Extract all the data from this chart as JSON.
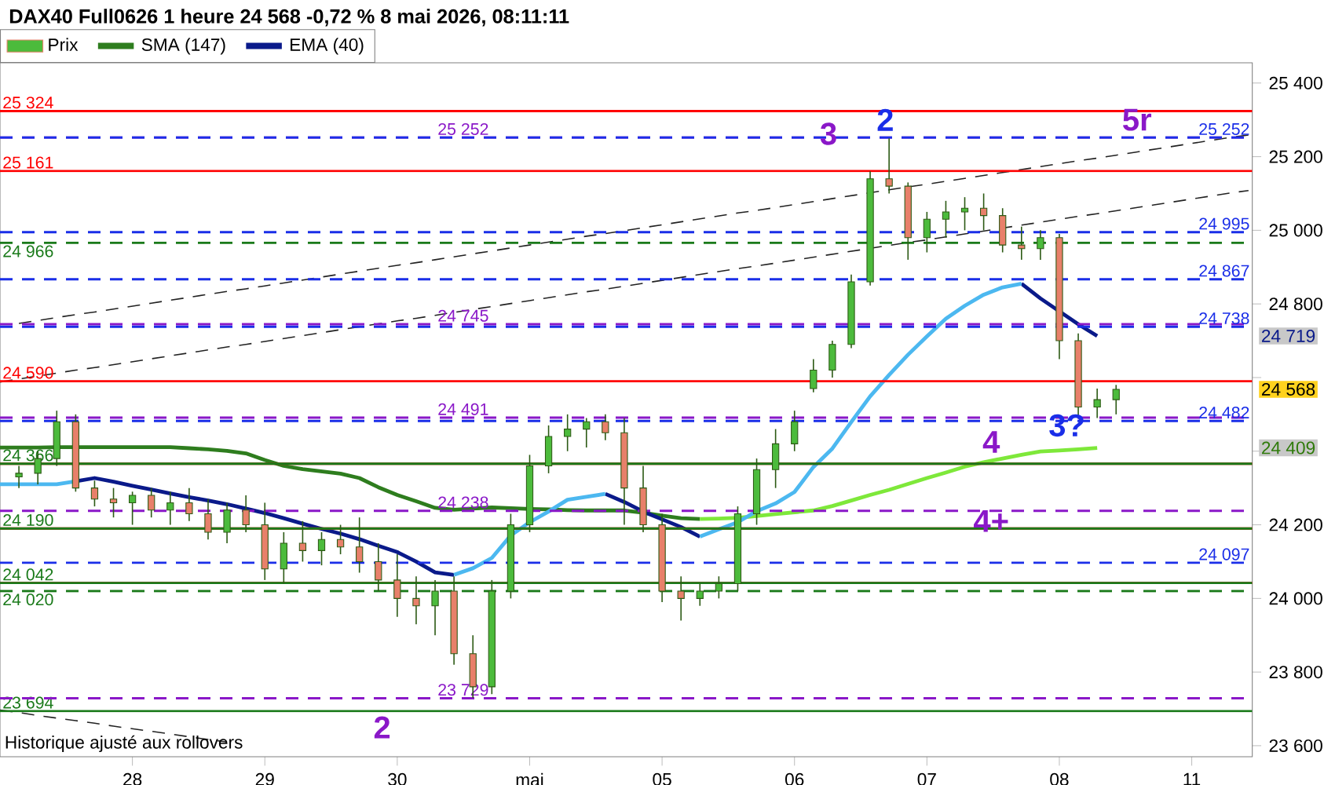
{
  "chart_data": {
    "type": "candlestick",
    "title": "DAX40 Full0626 1 heure 24 568 -0,72 % 8 mai 2026, 08:11:11",
    "categories": [
      null,
      null,
      null,
      null,
      null,
      null,
      null,
      "28",
      null,
      null,
      null,
      null,
      null,
      null,
      "29",
      null,
      null,
      null,
      null,
      null,
      null,
      "30",
      null,
      null,
      null,
      null,
      null,
      null,
      "mai",
      null,
      null,
      null,
      null,
      null,
      null,
      "05",
      null,
      null,
      null,
      null,
      null,
      null,
      "06",
      null,
      null,
      null,
      null,
      null,
      null,
      "07",
      null,
      null,
      null,
      null,
      null,
      null,
      "08",
      null,
      null,
      null,
      null,
      null,
      null,
      "11",
      null,
      null,
      null
    ],
    "ylim": [
      23570,
      25455
    ],
    "yticks": [
      {
        "value": 23600,
        "label": "23 600"
      },
      {
        "value": 23800,
        "label": "23 800"
      },
      {
        "value": 24000,
        "label": "24 000"
      },
      {
        "value": 24200,
        "label": "24 200"
      },
      {
        "value": 24400,
        "label": null
      },
      {
        "value": 24600,
        "label": null
      },
      {
        "value": 24800,
        "label": "24 800"
      },
      {
        "value": 25000,
        "label": "25 000"
      },
      {
        "value": 25200,
        "label": "25 200"
      },
      {
        "value": 25400,
        "label": "25 400"
      }
    ],
    "legend": "top left",
    "series": [
      {
        "name": "Prix",
        "ohlc": [
          null,
          [
            24330,
            24360,
            24300,
            24340
          ],
          [
            24340,
            24400,
            24310,
            24380
          ],
          [
            24380,
            24510,
            24360,
            24480
          ],
          [
            24480,
            24500,
            24290,
            24300
          ],
          [
            24300,
            24320,
            24250,
            24270
          ],
          [
            24270,
            24300,
            24220,
            24260
          ],
          [
            24260,
            24290,
            24200,
            24280
          ],
          [
            24280,
            24300,
            24220,
            24240
          ],
          [
            24240,
            24290,
            24200,
            24260
          ],
          [
            24260,
            24300,
            24210,
            24230
          ],
          [
            24230,
            24270,
            24160,
            24180
          ],
          [
            24180,
            24260,
            24150,
            24240
          ],
          [
            24240,
            24280,
            24180,
            24200
          ],
          [
            24200,
            24260,
            24050,
            24080
          ],
          [
            24080,
            24180,
            24040,
            24150
          ],
          [
            24150,
            24210,
            24100,
            24130
          ],
          [
            24130,
            24180,
            24090,
            24160
          ],
          [
            24160,
            24200,
            24120,
            24140
          ],
          [
            24140,
            24220,
            24070,
            24100
          ],
          [
            24100,
            24150,
            24020,
            24050
          ],
          [
            24050,
            24120,
            23950,
            24000
          ],
          [
            24000,
            24060,
            23930,
            23980
          ],
          [
            23980,
            24050,
            23900,
            24020
          ],
          [
            24020,
            24060,
            23820,
            23850
          ],
          [
            23850,
            23900,
            23730,
            23760
          ],
          [
            23760,
            24050,
            23740,
            24020
          ],
          [
            24020,
            24230,
            24000,
            24200
          ],
          [
            24200,
            24390,
            24180,
            24360
          ],
          [
            24360,
            24470,
            24340,
            24440
          ],
          [
            24440,
            24500,
            24400,
            24460
          ],
          [
            24460,
            24490,
            24410,
            24480
          ],
          [
            24480,
            24500,
            24430,
            24450
          ],
          [
            24450,
            24490,
            24200,
            24300
          ],
          [
            24300,
            24360,
            24180,
            24200
          ],
          [
            24200,
            24230,
            23990,
            24020
          ],
          [
            24020,
            24060,
            23940,
            24000
          ],
          [
            24000,
            24040,
            23980,
            24020
          ],
          [
            24020,
            24060,
            24000,
            24040
          ],
          [
            24040,
            24250,
            24020,
            24230
          ],
          [
            24230,
            24380,
            24200,
            24350
          ],
          [
            24350,
            24460,
            24300,
            24420
          ],
          [
            24420,
            24510,
            24400,
            24480
          ],
          [
            24570,
            24650,
            24560,
            24620
          ],
          [
            24620,
            24700,
            24600,
            24690
          ],
          [
            24690,
            24880,
            24680,
            24860
          ],
          [
            24860,
            25160,
            24850,
            25140
          ],
          [
            25140,
            25250,
            25100,
            25120
          ],
          [
            25120,
            25130,
            24920,
            24980
          ],
          [
            24980,
            25050,
            24940,
            25030
          ],
          [
            25030,
            25080,
            24980,
            25050
          ],
          [
            25050,
            25090,
            25000,
            25060
          ],
          [
            25060,
            25100,
            25000,
            25040
          ],
          [
            25040,
            25060,
            24940,
            24960
          ],
          [
            24960,
            25010,
            24920,
            24950
          ],
          [
            24950,
            25000,
            24920,
            24980
          ],
          [
            24980,
            24990,
            24650,
            24700
          ],
          [
            24700,
            24720,
            24490,
            24520
          ],
          [
            24520,
            24570,
            24490,
            24540
          ],
          [
            24540,
            24580,
            24500,
            24568
          ],
          null,
          null,
          null,
          null,
          null,
          null,
          null
        ]
      },
      {
        "type": "line",
        "name": "SMA (147)",
        "color": "#2e7d1e",
        "values": [
          24410,
          24410,
          24410,
          24411,
          24411,
          24411,
          24411,
          24411,
          24411,
          24411,
          24408,
          24405,
          24401,
          24394,
          24376,
          24360,
          24351,
          24345,
          24339,
          24327,
          24302,
          24281,
          24264,
          24246,
          24241,
          24244,
          24247,
          24245,
          24243,
          24242,
          24240,
          24239,
          24239,
          24239,
          24233,
          24225,
          24218,
          24216,
          null,
          null,
          null,
          null,
          null,
          null,
          null,
          null,
          null,
          null,
          null,
          null,
          null,
          null,
          null,
          null,
          null,
          null,
          null,
          null,
          null,
          null,
          null,
          null,
          null,
          null,
          null,
          null,
          null
        ]
      },
      {
        "type": "line",
        "color": "#7ee83a",
        "values": [
          null,
          null,
          null,
          null,
          null,
          null,
          null,
          null,
          null,
          null,
          null,
          null,
          null,
          null,
          null,
          null,
          null,
          null,
          null,
          null,
          null,
          null,
          null,
          null,
          null,
          null,
          null,
          null,
          null,
          null,
          null,
          null,
          null,
          null,
          null,
          null,
          null,
          24216,
          24217,
          24219,
          24224,
          24229,
          24234,
          24239,
          24251,
          24266,
          24281,
          24295,
          24311,
          24327,
          24342,
          24358,
          24370,
          24380,
          24390,
          24399,
          24402,
          24405,
          24409,
          null,
          null,
          null,
          null,
          null,
          null,
          null,
          null
        ]
      },
      {
        "type": "line",
        "name": "EMA (40)",
        "color": "#0a1a8a",
        "values": [
          null,
          null,
          null,
          null,
          24318,
          24327,
          24317,
          24306,
          24296,
          24285,
          24275,
          24266,
          24256,
          24244,
          24232,
          24218,
          24203,
          24189,
          24176,
          24161,
          24143,
          24126,
          24100,
          24071,
          24064,
          null,
          null,
          null,
          null,
          null,
          null,
          null,
          24284,
          24262,
          24236,
          24215,
          24194,
          24168,
          null,
          null,
          null,
          null,
          null,
          null,
          null,
          null,
          null,
          null,
          null,
          null,
          null,
          null,
          null,
          null,
          24855,
          24815,
          24780,
          24745,
          24713,
          null,
          null,
          null,
          null,
          null,
          null,
          null,
          null
        ]
      },
      {
        "type": "line",
        "color": "#4cb8f0",
        "values": [
          24310,
          24310,
          24310,
          24310,
          24318,
          null,
          null,
          null,
          null,
          null,
          null,
          null,
          null,
          null,
          null,
          null,
          null,
          null,
          null,
          null,
          null,
          null,
          null,
          null,
          24064,
          24082,
          24110,
          24171,
          24207,
          24236,
          24268,
          24276,
          24284,
          null,
          null,
          null,
          null,
          24168,
          24188,
          24207,
          24237,
          24258,
          24289,
          24357,
          24407,
          24479,
          24549,
          24607,
          24662,
          24712,
          24760,
          24795,
          24825,
          24845,
          24855,
          null,
          null,
          null,
          null,
          null,
          null,
          null,
          null,
          null,
          null,
          null,
          null
        ]
      },
      {
        "type": "line",
        "color": "#222222",
        "line_style": "dashed",
        "values": [
          null,
          24747,
          24755,
          24763,
          24771,
          24778,
          24786,
          24794,
          24802,
          24810,
          24818,
          24826,
          24834,
          24841,
          24849,
          24857,
          24865,
          24873,
          24881,
          24889,
          24897,
          24905,
          24912,
          24920,
          24928,
          24936,
          24944,
          24952,
          24960,
          24968,
          24976,
          24984,
          24991,
          24999,
          25007,
          25015,
          25023,
          25031,
          25039,
          25047,
          25054,
          25062,
          25070,
          25078,
          25086,
          25094,
          25102,
          25110,
          25118,
          25125,
          25133,
          25141,
          25149,
          25157,
          25165,
          25173,
          25181,
          25189,
          25196,
          25204,
          25212,
          25220,
          25228,
          25236,
          25244,
          25252,
          25259
        ]
      },
      {
        "type": "line",
        "color": "#222222",
        "line_style": "dashed",
        "values": [
          24588,
          24596,
          24604,
          24612,
          24620,
          24627,
          24635,
          24643,
          24651,
          24659,
          24667,
          24675,
          24683,
          24690,
          24698,
          24706,
          24714,
          24722,
          24730,
          24738,
          24746,
          24754,
          24761,
          24769,
          24777,
          24785,
          24793,
          24801,
          24809,
          24817,
          24825,
          24833,
          24840,
          24848,
          24856,
          24864,
          24872,
          24880,
          24888,
          24896,
          24903,
          24911,
          24919,
          24927,
          24935,
          24943,
          24951,
          24959,
          24967,
          24974,
          24982,
          24990,
          24998,
          25006,
          25014,
          25022,
          25030,
          25038,
          25045,
          25053,
          25061,
          25069,
          25077,
          25085,
          25093,
          25101,
          25108
        ]
      },
      {
        "type": "line",
        "color": "#222222",
        "line_style": "dashed",
        "values": [
          23697,
          23690,
          23682,
          23675,
          23668,
          23661,
          23653,
          23646,
          23639,
          23632,
          23624,
          23617,
          23610,
          null,
          null,
          null,
          null,
          null,
          null,
          null,
          null,
          null,
          null,
          null,
          null,
          null,
          null,
          null,
          null,
          null,
          null,
          null,
          null,
          null,
          null,
          null,
          null,
          null,
          null,
          null,
          null,
          null,
          null,
          null,
          null,
          null,
          null,
          null,
          null,
          null,
          null,
          null,
          null,
          null,
          null,
          null,
          null,
          null,
          null,
          null,
          null,
          null,
          null,
          null,
          null,
          null,
          null
        ]
      }
    ],
    "ref_lines": [
      {
        "axis": "y",
        "value": 25324,
        "label": "25 324",
        "color": "#ff0000",
        "line_style": "solid"
      },
      {
        "axis": "y",
        "value": 25161,
        "label": "25 161",
        "color": "#ff0000",
        "line_style": "solid"
      },
      {
        "axis": "y",
        "value": 24590,
        "label": "24 590",
        "color": "#ff0000",
        "line_style": "solid"
      },
      {
        "axis": "y",
        "value": 24366,
        "color": "#ff0000",
        "line_style": "solid"
      },
      {
        "axis": "y",
        "value": 24190,
        "color": "#ff0000",
        "line_style": "solid"
      },
      {
        "axis": "y",
        "value": 24042,
        "color": "#ff0000",
        "line_style": "solid"
      },
      {
        "axis": "y",
        "value": 24366,
        "label": "24 366",
        "color": "#1a7a1a",
        "line_style": "solid"
      },
      {
        "axis": "y",
        "value": 24190,
        "label": "24 190",
        "color": "#1a7a1a",
        "line_style": "solid"
      },
      {
        "axis": "y",
        "value": 24042,
        "label": "24 042",
        "color": "#1a7a1a",
        "line_style": "solid"
      },
      {
        "axis": "y",
        "value": 23694,
        "label": "23 694",
        "color": "#1a7a1a",
        "line_style": "solid"
      },
      {
        "axis": "y",
        "value": 24966,
        "label": "24 966",
        "color": "#1a7a1a",
        "line_style": "dashed"
      },
      {
        "axis": "y",
        "value": 24020,
        "label": "24 020",
        "color": "#1a7a1a",
        "line_style": "dashed"
      },
      {
        "axis": "y",
        "value": 25252,
        "label": "25 252",
        "color": "#8a18c8",
        "line_style": "dashed"
      },
      {
        "axis": "y",
        "value": 24745,
        "label": "24 745",
        "color": "#8a18c8",
        "line_style": "dashed"
      },
      {
        "axis": "y",
        "value": 24491,
        "label": "24 491",
        "color": "#8a18c8",
        "line_style": "dashed"
      },
      {
        "axis": "y",
        "value": 24238,
        "label": "24 238",
        "color": "#8a18c8",
        "line_style": "dashed"
      },
      {
        "axis": "y",
        "value": 23729,
        "label": "23 729",
        "color": "#8a18c8",
        "line_style": "dashed"
      },
      {
        "axis": "y",
        "value": 25252,
        "label": "25 252",
        "color": "#1a2ee8",
        "line_style": "dashed"
      },
      {
        "axis": "y",
        "value": 24995,
        "label": "24 995",
        "color": "#1a2ee8",
        "line_style": "dashed"
      },
      {
        "axis": "y",
        "value": 24867,
        "label": "24 867",
        "color": "#1a2ee8",
        "line_style": "dashed"
      },
      {
        "axis": "y",
        "value": 24738,
        "label": "24 738",
        "color": "#1a2ee8",
        "line_style": "dashed"
      },
      {
        "axis": "y",
        "value": 24482,
        "label": "24 482",
        "color": "#1a2ee8",
        "line_style": "dashed"
      },
      {
        "axis": "y",
        "value": 24097,
        "label": "24 097",
        "color": "#1a2ee8",
        "line_style": "dashed"
      }
    ],
    "annotations": [
      "3",
      "2",
      "5r",
      "2",
      "4",
      "3?",
      "4+",
      "24 719",
      "24 568",
      "24 409",
      "Historique ajusté aux rollovers"
    ]
  }
}
